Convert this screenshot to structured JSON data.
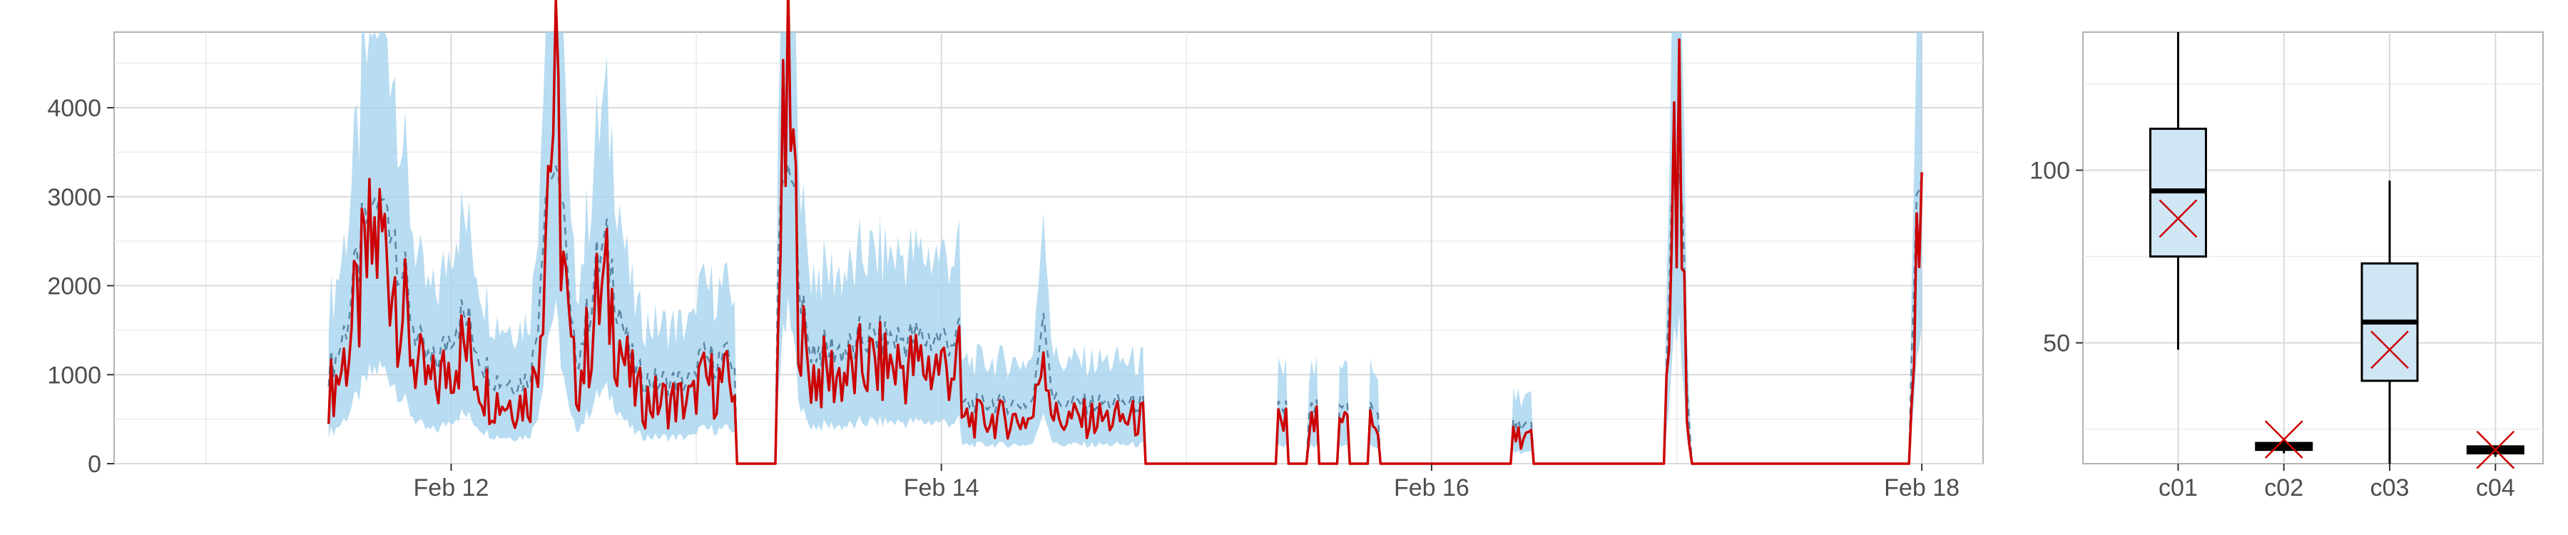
{
  "chart_data": [
    {
      "type": "line",
      "x_type": "datetime",
      "xlim": [
        "2025-02-10T15:00",
        "2025-02-18T06:00"
      ],
      "ylim": [
        0,
        4850
      ],
      "x_ticks": [
        {
          "value": "2025-02-12T00:00",
          "label": "Feb 12"
        },
        {
          "value": "2025-02-14T00:00",
          "label": "Feb 14"
        },
        {
          "value": "2025-02-16T00:00",
          "label": "Feb 16"
        },
        {
          "value": "2025-02-18T00:00",
          "label": "Feb 18"
        }
      ],
      "y_ticks": [
        0,
        1000,
        2000,
        3000,
        4000
      ],
      "grid": true,
      "band_color": "#a6d3ee",
      "mid_color": "#5b87a6",
      "line_color": "#cc0000",
      "series": [
        {
          "x": [
            "2025-02-11T12:00",
            "2025-02-11T13:00",
            "2025-02-11T13:30",
            "2025-02-11T14:00",
            "2025-02-11T15:00",
            "2025-02-11T16:00",
            "2025-02-11T17:00",
            "2025-02-11T18:00",
            "2025-02-11T19:00",
            "2025-02-11T20:00",
            "2025-02-11T20:30",
            "2025-02-11T21:00",
            "2025-02-11T22:00",
            "2025-02-11T23:00",
            "2025-02-12T00:00",
            "2025-02-12T01:00",
            "2025-02-12T02:00",
            "2025-02-12T03:00",
            "2025-02-12T04:00",
            "2025-02-12T05:00",
            "2025-02-12T06:00",
            "2025-02-12T07:00",
            "2025-02-12T08:00",
            "2025-02-12T09:00",
            "2025-02-12T10:00",
            "2025-02-12T11:00",
            "2025-02-12T11:30",
            "2025-02-12T12:00",
            "2025-02-12T13:00",
            "2025-02-12T14:00",
            "2025-02-12T15:00",
            "2025-02-12T16:00",
            "2025-02-12T17:00",
            "2025-02-12T18:00",
            "2025-02-12T19:00",
            "2025-02-12T20:00",
            "2025-02-12T21:00",
            "2025-02-12T22:00",
            "2025-02-12T23:00",
            "2025-02-13T00:00",
            "2025-02-13T01:00",
            "2025-02-13T02:00",
            "2025-02-13T03:00",
            "2025-02-13T04:00",
            "2025-02-13T05:00",
            "2025-02-13T06:00",
            "2025-02-13T07:00",
            "2025-02-13T08:00",
            "2025-02-13T09:00",
            "2025-02-13T10:00",
            "2025-02-13T11:00",
            "2025-02-13T12:00",
            "2025-02-13T13:00",
            "2025-02-13T14:00",
            "2025-02-13T15:00",
            "2025-02-13T16:00",
            "2025-02-13T17:00",
            "2025-02-13T18:00",
            "2025-02-13T19:00",
            "2025-02-13T20:00",
            "2025-02-13T21:00",
            "2025-02-13T22:00",
            "2025-02-13T23:00",
            "2025-02-14T00:00",
            "2025-02-14T01:00",
            "2025-02-14T02:00",
            "2025-02-14T03:00",
            "2025-02-14T04:00",
            "2025-02-14T05:00",
            "2025-02-14T06:00",
            "2025-02-14T07:00",
            "2025-02-14T08:00",
            "2025-02-14T09:00",
            "2025-02-14T10:00",
            "2025-02-14T11:00",
            "2025-02-14T12:00",
            "2025-02-14T13:00",
            "2025-02-14T14:00",
            "2025-02-14T15:00",
            "2025-02-14T16:00",
            "2025-02-14T17:00",
            "2025-02-14T18:00",
            "2025-02-14T19:00",
            "2025-02-14T20:00",
            "2025-02-14T21:00",
            "2025-02-14T22:00",
            "2025-02-14T23:00",
            "2025-02-15T00:00",
            "2025-02-15T01:00",
            "2025-02-15T02:00",
            "2025-02-15T03:00",
            "2025-02-15T04:00",
            "2025-02-15T05:00",
            "2025-02-15T06:00",
            "2025-02-15T07:00",
            "2025-02-15T08:00",
            "2025-02-15T09:00",
            "2025-02-15T10:00",
            "2025-02-15T11:00",
            "2025-02-15T12:00",
            "2025-02-15T13:00",
            "2025-02-15T14:00",
            "2025-02-15T15:00",
            "2025-02-15T16:00",
            "2025-02-15T17:00",
            "2025-02-15T18:00",
            "2025-02-15T19:00",
            "2025-02-15T20:00",
            "2025-02-15T21:00",
            "2025-02-15T22:00",
            "2025-02-15T23:00",
            "2025-02-16T00:00",
            "2025-02-16T01:00",
            "2025-02-16T02:00",
            "2025-02-16T03:00",
            "2025-02-16T04:00",
            "2025-02-16T05:00",
            "2025-02-16T06:00",
            "2025-02-16T07:00",
            "2025-02-16T08:00",
            "2025-02-16T09:00",
            "2025-02-16T10:00",
            "2025-02-16T11:00",
            "2025-02-16T12:00",
            "2025-02-16T13:00",
            "2025-02-16T14:00",
            "2025-02-16T15:00",
            "2025-02-16T16:00",
            "2025-02-16T17:00",
            "2025-02-16T18:00",
            "2025-02-16T19:00",
            "2025-02-16T20:00",
            "2025-02-16T21:00",
            "2025-02-16T22:00",
            "2025-02-16T23:00",
            "2025-02-17T00:00",
            "2025-02-17T01:00",
            "2025-02-17T02:00",
            "2025-02-17T03:00",
            "2025-02-17T04:00",
            "2025-02-17T05:00",
            "2025-02-17T06:00",
            "2025-02-17T07:00",
            "2025-02-17T08:00",
            "2025-02-17T09:00",
            "2025-02-17T10:00",
            "2025-02-17T11:00",
            "2025-02-17T12:00",
            "2025-02-17T13:00",
            "2025-02-17T14:00",
            "2025-02-17T15:00",
            "2025-02-17T16:00",
            "2025-02-17T17:00",
            "2025-02-17T18:00",
            "2025-02-17T19:00",
            "2025-02-17T20:00",
            "2025-02-17T21:00",
            "2025-02-17T22:00",
            "2025-02-17T23:00",
            "2025-02-18T00:00"
          ]
        }
      ]
    },
    {
      "type": "box",
      "categories": [
        "c01",
        "c02",
        "c03",
        "c04"
      ],
      "ylim": [
        15,
        140
      ],
      "y_ticks": [
        50,
        100
      ],
      "grid": true,
      "box_fill": "#cfe6f5",
      "mean_marker_color": "#cc0000",
      "boxes": [
        {
          "name": "c01",
          "min": 48,
          "q1": 75,
          "median": 94,
          "q3": 112,
          "max": 140,
          "mean": 86
        },
        {
          "name": "c02",
          "min": 18,
          "q1": 19,
          "median": 20,
          "q3": 21,
          "max": 22,
          "mean": 22
        },
        {
          "name": "c03",
          "min": 15,
          "q1": 39,
          "median": 56,
          "q3": 73,
          "max": 97,
          "mean": 48
        },
        {
          "name": "c04",
          "min": 17,
          "q1": 18,
          "median": 19,
          "q3": 20,
          "max": 20,
          "mean": 19
        }
      ]
    }
  ]
}
